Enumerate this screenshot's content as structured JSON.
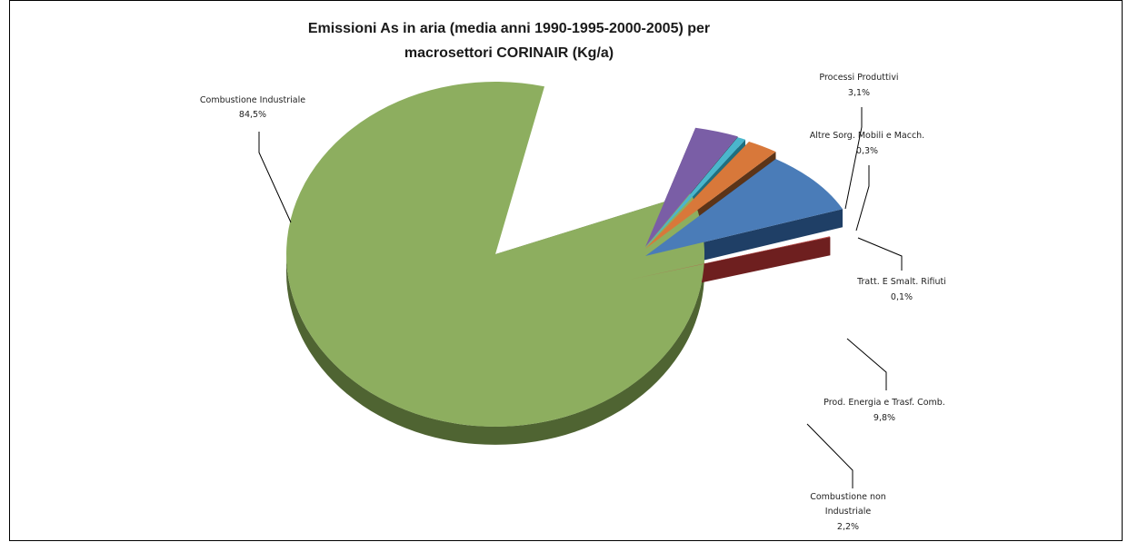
{
  "chart_data": {
    "type": "pie",
    "title_line1": "Emissioni As in aria (media anni 1990-1995-2000-2005) per",
    "title_line2": "macrosettori CORINAIR (Kg/a)",
    "slices": [
      {
        "label": "Combustione Industriale",
        "value": 84.5,
        "pct_label": "84,5%",
        "color": "#8dae5f",
        "side": "#4f6432"
      },
      {
        "label": "Processi Produttivi",
        "value": 3.1,
        "pct_label": "3,1%",
        "color": "#7a5ea6",
        "side": "#3f2f5c"
      },
      {
        "label": "Altre Sorg. Mobili e Macch.",
        "value": 0.3,
        "pct_label": "0,3%",
        "color": "#4bb6cc",
        "side": "#1f6f80"
      },
      {
        "label": "Tratt. E Smalt. Rifiuti",
        "value": 0.1,
        "pct_label": "0,1%",
        "color": "#d8783a",
        "side": "#5c3418"
      },
      {
        "label": "Prod. Energia e Trasf. Comb.",
        "value": 9.8,
        "pct_label": "9,8%",
        "color": "#4a7cb8",
        "side": "#1f3f66"
      },
      {
        "label": "Combustione non Industriale",
        "label_lines": [
          "Combustione non",
          "Industriale"
        ],
        "value": 2.2,
        "pct_label": "2,2%",
        "color": "#c0504d",
        "side": "#6e1f1f"
      }
    ]
  }
}
